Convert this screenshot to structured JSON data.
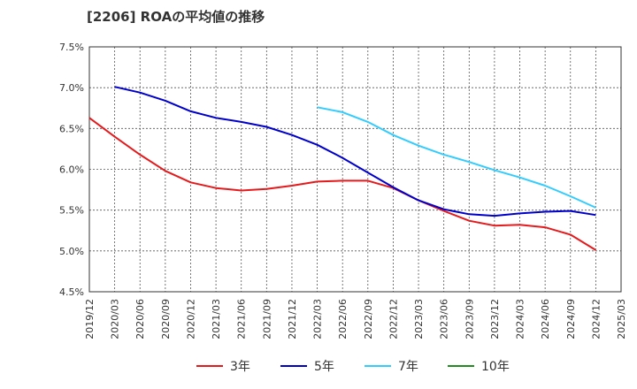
{
  "chart_data": {
    "type": "line",
    "title": "[2206]  ROAの平均値の推移",
    "xlabel": "",
    "ylabel": "",
    "x": [
      "2019/12",
      "2020/03",
      "2020/06",
      "2020/09",
      "2020/12",
      "2021/03",
      "2021/06",
      "2021/09",
      "2021/12",
      "2022/03",
      "2022/06",
      "2022/09",
      "2022/12",
      "2023/03",
      "2023/06",
      "2023/09",
      "2023/12",
      "2024/03",
      "2024/06",
      "2024/09",
      "2024/12",
      "2025/03"
    ],
    "yticks": [
      "4.5%",
      "5.0%",
      "5.5%",
      "6.0%",
      "6.5%",
      "7.0%",
      "7.5%"
    ],
    "ylim": [
      4.5,
      7.5
    ],
    "grid": true,
    "legend_position": "bottom",
    "series": [
      {
        "name": "3年",
        "color": "#e41a1c",
        "values": [
          6.63,
          6.4,
          6.18,
          5.98,
          5.84,
          5.77,
          5.74,
          5.76,
          5.8,
          5.85,
          5.86,
          5.86,
          5.77,
          5.62,
          5.49,
          5.37,
          5.31,
          5.32,
          5.29,
          5.2,
          5.01,
          null
        ]
      },
      {
        "name": "5年",
        "color": "#0000cc",
        "values": [
          null,
          7.01,
          6.94,
          6.84,
          6.71,
          6.63,
          6.58,
          6.52,
          6.42,
          6.3,
          6.14,
          5.96,
          5.78,
          5.62,
          5.51,
          5.45,
          5.43,
          5.46,
          5.48,
          5.49,
          5.44,
          null
        ]
      },
      {
        "name": "7年",
        "color": "#33ccff",
        "values": [
          null,
          null,
          null,
          null,
          null,
          null,
          null,
          null,
          null,
          6.76,
          6.7,
          6.58,
          6.42,
          6.29,
          6.18,
          6.09,
          5.99,
          5.9,
          5.8,
          5.67,
          5.53,
          null
        ]
      },
      {
        "name": "10年",
        "color": "#228b22",
        "values": [
          null,
          null,
          null,
          null,
          null,
          null,
          null,
          null,
          null,
          null,
          null,
          null,
          null,
          null,
          null,
          null,
          null,
          null,
          null,
          null,
          null,
          null
        ]
      }
    ]
  }
}
